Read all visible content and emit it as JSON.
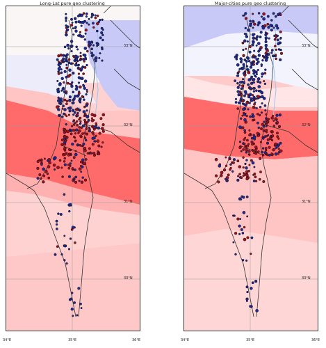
{
  "maps": [
    {
      "title": "Long-Lat pure geo clustering",
      "lat_labels": [
        "33°N",
        "32°N",
        "31°N",
        "30°N"
      ],
      "lon_labels": [
        "34°E",
        "35°E",
        "36°E"
      ]
    },
    {
      "title": "Major-cities pure geo clustering",
      "lat_labels": [
        "33°N",
        "32°N",
        "31°N",
        "30°N"
      ],
      "lon_labels": [
        "34°E",
        "35°E",
        "36°E"
      ]
    }
  ],
  "colors": {
    "blue_zone": "#c9c9f7",
    "light_blue_zone": "#ececfb",
    "white_zone": "#fbf6f6",
    "light_red_zone": "#ffc4c4",
    "mid_red_zone": "#ff8f8f",
    "strong_red_zone": "#ff6b6b",
    "pale_red_zone": "#ffd8d8",
    "dot_blue": "#1f2a99",
    "dot_red": "#a01020",
    "dot_edge": "#111111",
    "river": "#9dc3ef",
    "border": "#333333"
  }
}
